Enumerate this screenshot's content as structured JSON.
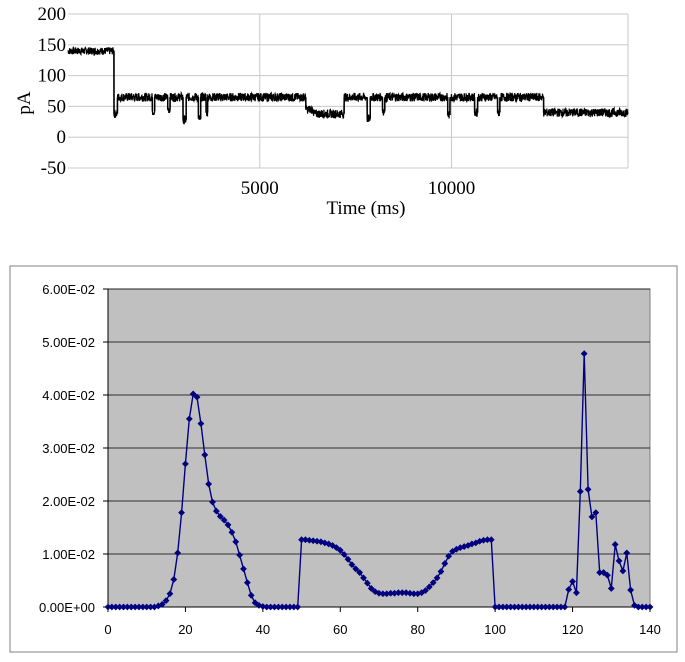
{
  "chart_data": [
    {
      "type": "line",
      "title": "",
      "xlabel": "Time (ms)",
      "ylabel": "pA",
      "xlim": [
        0,
        14600
      ],
      "ylim": [
        -50,
        200
      ],
      "y_ticks": [
        "200",
        "150",
        "100",
        "50",
        "0",
        "-50"
      ],
      "x_ticks": [
        "5000",
        "10000"
      ],
      "grid": true,
      "legend": "none",
      "line_color": "#000000",
      "series": [
        {
          "x": [
            0,
            1200,
            1200,
            1290,
            1290,
            2200,
            2200,
            2260,
            2260,
            2600,
            2600,
            2660,
            2660,
            3000,
            3000,
            3080,
            3080,
            3400,
            3400,
            3460,
            3460,
            3600,
            3600,
            3640,
            3640,
            6200,
            6200,
            6400,
            6400,
            7200,
            7200,
            7800,
            7800,
            7880,
            7880,
            8200,
            8200,
            8260,
            8260,
            9900,
            9900,
            9960,
            9960,
            10600,
            10600,
            10680,
            10680,
            11200,
            11200,
            11260,
            11260,
            12400,
            12400,
            12450,
            12450,
            14600
          ],
          "y": [
            140,
            140,
            38,
            38,
            65,
            65,
            42,
            42,
            65,
            65,
            45,
            45,
            65,
            65,
            28,
            28,
            65,
            65,
            30,
            30,
            65,
            65,
            40,
            40,
            65,
            65,
            45,
            45,
            38,
            38,
            65,
            65,
            30,
            30,
            65,
            65,
            42,
            42,
            65,
            65,
            36,
            36,
            65,
            65,
            40,
            40,
            65,
            65,
            40,
            40,
            65,
            65,
            40,
            40,
            40,
            40
          ]
        }
      ]
    },
    {
      "type": "line",
      "title": "",
      "xlabel": "",
      "ylabel": "",
      "xlim": [
        0,
        140
      ],
      "ylim": [
        0,
        0.06
      ],
      "x_ticks": [
        "0",
        "20",
        "40",
        "60",
        "80",
        "100",
        "120",
        "140"
      ],
      "y_ticks": [
        "6.00E-02",
        "5.00E-02",
        "4.00E-02",
        "3.00E-02",
        "2.00E-02",
        "1.00E-02",
        "0.00E+00"
      ],
      "grid": true,
      "legend": "none",
      "plot_background": "#c0c0c0",
      "line_color": "#000080",
      "marker": "diamond",
      "series": [
        {
          "x": [
            0,
            1,
            2,
            3,
            4,
            5,
            6,
            7,
            8,
            9,
            10,
            11,
            12,
            13,
            14,
            15,
            16,
            17,
            18,
            19,
            20,
            21,
            22,
            23,
            24,
            25,
            26,
            27,
            28,
            29,
            30,
            31,
            32,
            33,
            34,
            35,
            36,
            37,
            38,
            39,
            40,
            41,
            42,
            43,
            44,
            45,
            46,
            47,
            48,
            49,
            50,
            51,
            52,
            53,
            54,
            55,
            56,
            57,
            58,
            59,
            60,
            61,
            62,
            63,
            64,
            65,
            66,
            67,
            68,
            69,
            70,
            71,
            72,
            73,
            74,
            75,
            76,
            77,
            78,
            79,
            80,
            81,
            82,
            83,
            84,
            85,
            86,
            87,
            88,
            89,
            90,
            91,
            92,
            93,
            94,
            95,
            96,
            97,
            98,
            99,
            100,
            101,
            102,
            103,
            104,
            105,
            106,
            107,
            108,
            109,
            110,
            111,
            112,
            113,
            114,
            115,
            116,
            117,
            118,
            119,
            120,
            121,
            122,
            123,
            124,
            125,
            126,
            127,
            128,
            129,
            130,
            131,
            132,
            133,
            134,
            135,
            136,
            137,
            138,
            139,
            140
          ],
          "y": [
            0,
            0,
            0,
            0,
            0,
            0,
            0,
            0,
            0,
            0,
            0,
            0,
            0,
            0.0002,
            0.0005,
            0.0012,
            0.0025,
            0.0052,
            0.0102,
            0.0178,
            0.027,
            0.0355,
            0.0402,
            0.0396,
            0.0346,
            0.0287,
            0.0232,
            0.0198,
            0.0181,
            0.0171,
            0.0164,
            0.0155,
            0.0141,
            0.0123,
            0.0098,
            0.0072,
            0.0046,
            0.0022,
            0.0008,
            0.0003,
            0.0001,
            0,
            0,
            0,
            0,
            0,
            0,
            0,
            0,
            0,
            0.0127,
            0.0127,
            0.0126,
            0.0125,
            0.0124,
            0.0123,
            0.0121,
            0.0119,
            0.0116,
            0.0112,
            0.0107,
            0.0099,
            0.009,
            0.008,
            0.0072,
            0.0065,
            0.0055,
            0.0045,
            0.0035,
            0.0029,
            0.0026,
            0.0025,
            0.0025,
            0.0026,
            0.0026,
            0.0027,
            0.0027,
            0.0027,
            0.0026,
            0.0025,
            0.0025,
            0.0027,
            0.0031,
            0.0038,
            0.0046,
            0.0055,
            0.0067,
            0.0082,
            0.0096,
            0.0105,
            0.0109,
            0.0112,
            0.0114,
            0.0116,
            0.0119,
            0.0121,
            0.0124,
            0.0126,
            0.0127,
            0.0127,
            0,
            0,
            0,
            0,
            0,
            0,
            0,
            0,
            0,
            0,
            0,
            0,
            0,
            0,
            0,
            0,
            0,
            0,
            0,
            0.0033,
            0.0048,
            0.0027,
            0.0218,
            0.0478,
            0.0222,
            0.017,
            0.0178,
            0.0065,
            0.0065,
            0.006,
            0.0035,
            0.0118,
            0.0087,
            0.0068,
            0.0102,
            0.0032,
            0.0003,
            0,
            0,
            0,
            0
          ]
        }
      ]
    }
  ]
}
